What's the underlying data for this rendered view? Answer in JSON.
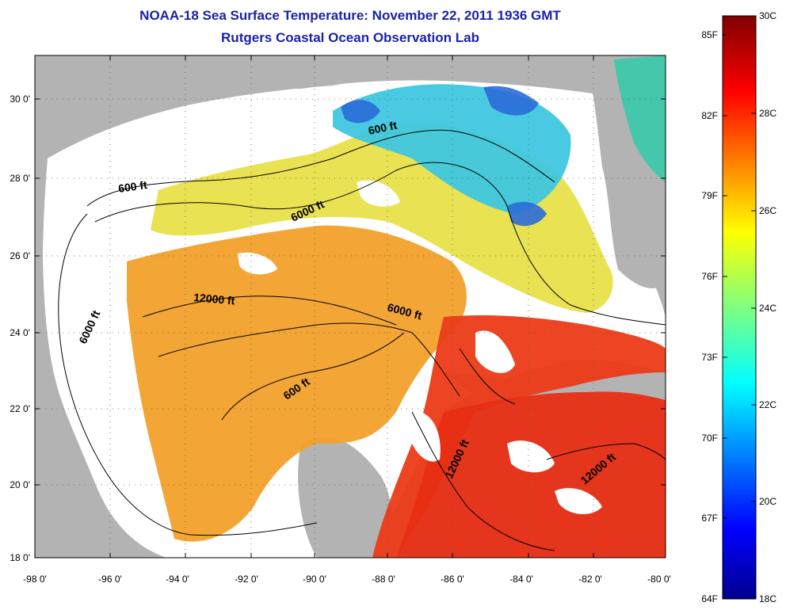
{
  "header": {
    "title": "NOAA-18 Sea Surface Temperature:  November 22, 2011 1936 GMT",
    "subtitle": "Rutgers Coastal Ocean Observation Lab"
  },
  "map": {
    "lat_ticks": [
      "30 0'",
      "28 0'",
      "26 0'",
      "24 0'",
      "22 0'",
      "20 0'",
      "18 0'"
    ],
    "lon_ticks": [
      "-98 0'",
      "-96 0'",
      "-94 0'",
      "-92 0'",
      "-90 0'",
      "-88 0'",
      "-86 0'",
      "-84 0'",
      "-82 0'",
      "-80 0'"
    ],
    "extent": {
      "lon": [
        -98,
        -80
      ],
      "lat": [
        18,
        31
      ]
    },
    "contour_labels": [
      "600 ft",
      "600 ft",
      "6000 ft",
      "12000 ft",
      "6000 ft",
      "6000 ft",
      "600 ft",
      "12000 ft",
      "12000 ft"
    ],
    "colors": {
      "land": "#b3b3b3",
      "cloud": "#ffffff"
    }
  },
  "colorbar": {
    "f_labels": [
      "85F",
      "82F",
      "79F",
      "76F",
      "73F",
      "70F",
      "67F",
      "64F"
    ],
    "c_labels": [
      "30C",
      "28C",
      "26C",
      "24C",
      "22C",
      "20C",
      "18C"
    ],
    "range_c": [
      18,
      30
    ],
    "colormap": "jet"
  }
}
